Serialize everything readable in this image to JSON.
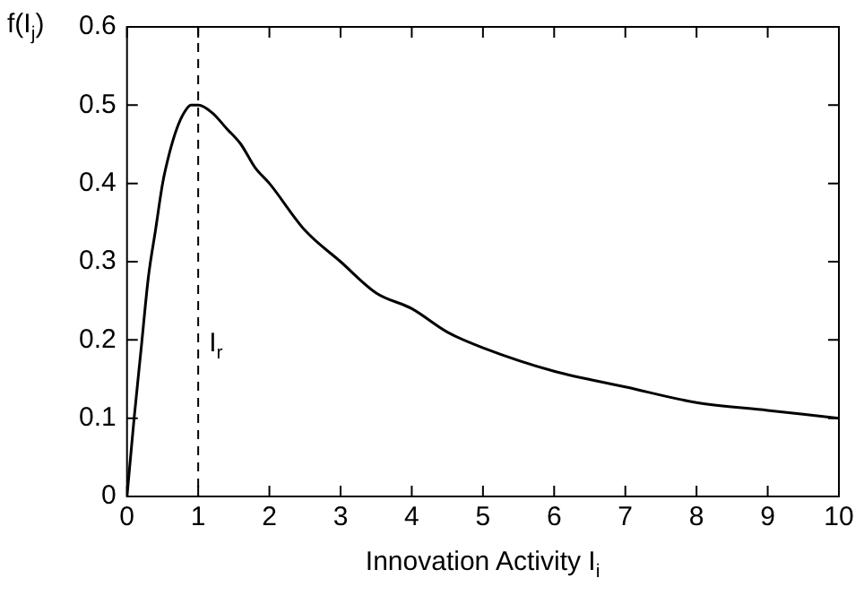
{
  "chart_data": {
    "type": "line",
    "xlabel": "Innovation Activity I$_{i}$",
    "ylabel": "f(I$_{j}$)",
    "x": [
      0,
      0.1,
      0.2,
      0.3,
      0.4,
      0.5,
      0.6,
      0.7,
      0.8,
      0.9,
      1,
      1.2,
      1.4,
      1.6,
      1.8,
      2,
      2.5,
      3,
      3.5,
      4,
      4.5,
      5,
      6,
      7,
      8,
      9,
      10
    ],
    "series": [
      {
        "color": "#000000",
        "values": [
          0,
          0.1,
          0.19,
          0.28,
          0.34,
          0.4,
          0.44,
          0.47,
          0.49,
          0.5,
          0.5,
          0.49,
          0.47,
          0.45,
          0.42,
          0.4,
          0.34,
          0.3,
          0.26,
          0.24,
          0.21,
          0.19,
          0.16,
          0.14,
          0.12,
          0.11,
          0.1
        ]
      }
    ],
    "xlim": [
      0,
      10
    ],
    "xticks": [
      0,
      1,
      2,
      3,
      4,
      5,
      6,
      7,
      8,
      9,
      10
    ],
    "ylim": [
      0,
      0.6
    ],
    "yticks": [
      0,
      0.1,
      0.2,
      0.3,
      0.4,
      0.5,
      0.6
    ],
    "ref_lines": [
      {
        "axis": "x",
        "value": 1,
        "label": "I$_{r}$",
        "line_style": "dashed",
        "color": "#000000"
      }
    ],
    "legend": false,
    "marker": "none",
    "line_style": "solid"
  }
}
